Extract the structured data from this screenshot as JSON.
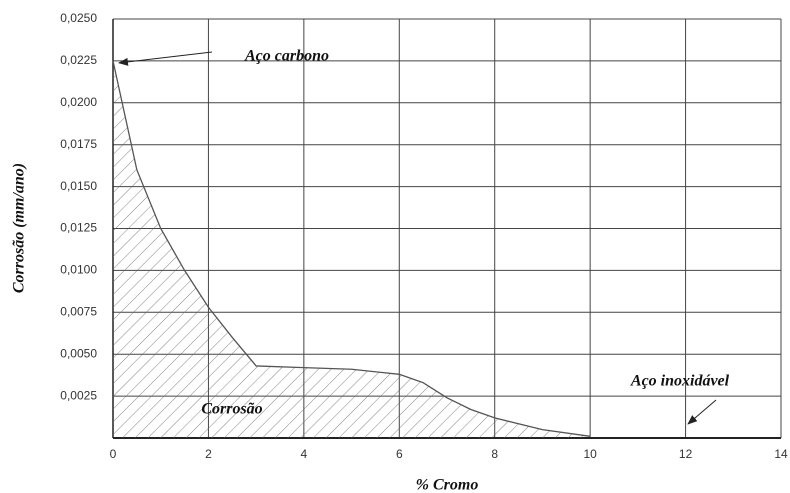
{
  "chart_data": {
    "type": "area",
    "xlabel": "% Cromo",
    "ylabel": "Corrosão (mm/ano)",
    "x": [
      0,
      0.5,
      1,
      1.5,
      2,
      2.5,
      3,
      4,
      5,
      6,
      6.5,
      7,
      7.5,
      8,
      9,
      10
    ],
    "values": [
      0.0225,
      0.016,
      0.0125,
      0.01,
      0.0078,
      0.006,
      0.0043,
      0.0042,
      0.0041,
      0.0038,
      0.0033,
      0.0024,
      0.0017,
      0.0012,
      0.0005,
      0.0001
    ],
    "color": "#555555",
    "xlim": [
      0,
      14
    ],
    "xticks": [
      0,
      2,
      4,
      6,
      8,
      10,
      12,
      14
    ],
    "ylim": [
      0,
      0.025
    ],
    "yticks": [
      {
        "value": 0.0025,
        "label": "0,0025"
      },
      {
        "value": 0.005,
        "label": "0,0050"
      },
      {
        "value": 0.0075,
        "label": "0,0075"
      },
      {
        "value": 0.01,
        "label": "0,0100"
      },
      {
        "value": 0.0125,
        "label": "0,0125"
      },
      {
        "value": 0.015,
        "label": "0,0150"
      },
      {
        "value": 0.0175,
        "label": "0,0175"
      },
      {
        "value": 0.02,
        "label": "0,0200"
      },
      {
        "value": 0.0225,
        "label": "0,0225"
      },
      {
        "value": 0.025,
        "label": "0,0250"
      }
    ],
    "grid": true,
    "annotations": [
      "Aço carbono",
      "Aço inoxidável",
      "Corrosão"
    ]
  }
}
